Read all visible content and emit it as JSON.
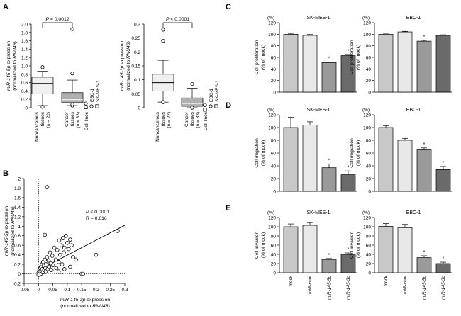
{
  "chart_data": [
    {
      "panel": "A",
      "type": "boxplot",
      "ylabel_lines": [
        [
          "miR-145-5p",
          " expression"
        ],
        [
          "(normalized to ",
          "RNU48",
          ")"
        ]
      ],
      "ylim": [
        0,
        2.0
      ],
      "yticks": [
        0,
        0.2,
        0.4,
        0.6,
        0.8,
        1.0,
        1.2,
        1.4,
        1.6,
        1.8,
        2.0
      ],
      "yticklabels": [
        "0",
        "0.2",
        "0.4",
        "0.6",
        "0.8",
        "1.0",
        "1.2",
        "1.4",
        "1.6",
        "1.8",
        "2.0"
      ],
      "pvalue": "P = 0.0012",
      "groups": [
        {
          "label_lines": [
            "Noncancerous",
            "tissues",
            "(n = 22)"
          ],
          "whisker_low": 0.05,
          "q1": 0.33,
          "median": 0.58,
          "q3": 0.73,
          "whisker_high": 0.87,
          "outliers": [
            0.97,
            0.02
          ]
        },
        {
          "label_lines": [
            "Cancer",
            "tissues",
            "(n = 33)"
          ],
          "whisker_low": 0.05,
          "q1": 0.12,
          "median": 0.19,
          "q3": 0.36,
          "whisker_high": 0.66,
          "outliers": [
            0.82,
            1.88,
            0.05,
            0.08
          ]
        },
        {
          "label_lines": [
            "Cell lines"
          ],
          "cell_lines": [
            {
              "name": "EBC-1",
              "value": 0.05,
              "marker": "circle"
            },
            {
              "name": "SK-MES-1",
              "value": 0.08,
              "marker": "square"
            }
          ]
        }
      ]
    },
    {
      "panel": "A2",
      "type": "boxplot",
      "ylabel_lines": [
        [
          "miR-145-3p",
          " expression"
        ],
        [
          "(normalized to ",
          "RNU48",
          ")"
        ]
      ],
      "ylim": [
        0,
        0.3
      ],
      "yticks": [
        0,
        0.05,
        0.1,
        0.15,
        0.2,
        0.25,
        0.3
      ],
      "yticklabels": [
        "0",
        "0.05",
        "0.1",
        "0.15",
        "0.2",
        "0.25",
        "0.3"
      ],
      "pvalue": "P < 0.0001",
      "groups": [
        {
          "label_lines": [
            "Noncancerous",
            "tissues",
            "(n = 22)"
          ],
          "whisker_low": 0.02,
          "q1": 0.06,
          "median": 0.09,
          "q3": 0.12,
          "whisker_high": 0.17,
          "outliers": [
            0.24,
            0.28,
            0.02
          ]
        },
        {
          "label_lines": [
            "Cancer",
            "tissues",
            "(n = 33)"
          ],
          "whisker_low": 0.0,
          "q1": 0.005,
          "median": 0.015,
          "q3": 0.035,
          "whisker_high": 0.07,
          "outliers": [
            0.085,
            0.0
          ]
        },
        {
          "label_lines": [
            "Cell lines"
          ],
          "cell_lines": [
            {
              "name": "EBC-1",
              "value": 0.002,
              "marker": "circle"
            },
            {
              "name": "SK-MES-1",
              "value": 0.003,
              "marker": "square"
            }
          ]
        }
      ]
    },
    {
      "panel": "B",
      "type": "scatter",
      "xlabel_lines": [
        [
          "miR-145-3p",
          " expression"
        ],
        [
          "(normalized to ",
          "RNU48",
          ")"
        ]
      ],
      "ylabel_lines": [
        [
          "miR-145-5p",
          " expression"
        ],
        [
          "(normalized to ",
          "RNU48",
          ")"
        ]
      ],
      "xlim": [
        -0.05,
        0.3
      ],
      "ylim": [
        -0.2,
        2.0
      ],
      "xticks": [
        -0.05,
        0,
        0.05,
        0.1,
        0.15,
        0.2,
        0.25,
        0.3
      ],
      "xticklabels": [
        "-0.05",
        "0",
        "0.05",
        "0.1",
        "0.15",
        "0.2",
        "0.25",
        "0.3"
      ],
      "yticks": [
        -0.2,
        0,
        0.2,
        0.4,
        0.6,
        0.8,
        1.0,
        1.2,
        1.4,
        1.6,
        1.8,
        2.0
      ],
      "yticklabels": [
        "-0.2",
        "0",
        "0.2",
        "0.4",
        "0.6",
        "0.8",
        "1",
        "1.2",
        "1.4",
        "1.6",
        "1.8",
        "2"
      ],
      "stats": [
        "P < 0.0001",
        "R = 0.616"
      ],
      "regression": {
        "x0": 0.0,
        "y0": 0.08,
        "x1": 0.3,
        "y1": 1.02
      },
      "points": [
        [
          0.0,
          0.02
        ],
        [
          0.003,
          0.08
        ],
        [
          0.005,
          0.05
        ],
        [
          0.006,
          0.12
        ],
        [
          0.008,
          0.0
        ],
        [
          0.009,
          0.15
        ],
        [
          0.01,
          0.06
        ],
        [
          0.012,
          0.2
        ],
        [
          0.013,
          0.1
        ],
        [
          0.015,
          0.03
        ],
        [
          0.016,
          0.25
        ],
        [
          0.018,
          0.17
        ],
        [
          0.02,
          0.08
        ],
        [
          0.022,
          0.3
        ],
        [
          0.024,
          0.12
        ],
        [
          0.025,
          0.05
        ],
        [
          0.027,
          0.2
        ],
        [
          0.03,
          0.35
        ],
        [
          0.032,
          0.1
        ],
        [
          0.035,
          0.28
        ],
        [
          0.037,
          0.15
        ],
        [
          0.04,
          0.45
        ],
        [
          0.042,
          0.22
        ],
        [
          0.045,
          0.08
        ],
        [
          0.048,
          0.38
        ],
        [
          0.05,
          0.18
        ],
        [
          0.055,
          0.55
        ],
        [
          0.06,
          0.3
        ],
        [
          0.062,
          0.12
        ],
        [
          0.065,
          0.5
        ],
        [
          0.07,
          0.25
        ],
        [
          0.072,
          0.7
        ],
        [
          0.075,
          0.4
        ],
        [
          0.08,
          0.6
        ],
        [
          0.082,
          0.2
        ],
        [
          0.085,
          0.75
        ],
        [
          0.088,
          0.45
        ],
        [
          0.09,
          0.55
        ],
        [
          0.095,
          0.8
        ],
        [
          0.1,
          0.65
        ],
        [
          0.105,
          0.52
        ],
        [
          0.11,
          0.72
        ],
        [
          0.115,
          0.6
        ],
        [
          0.12,
          0.35
        ],
        [
          0.13,
          0.3
        ],
        [
          0.15,
          0.0
        ],
        [
          0.155,
          0.0
        ],
        [
          0.2,
          0.4
        ],
        [
          0.275,
          0.9
        ],
        [
          0.022,
          0.82
        ],
        [
          0.03,
          1.82
        ],
        [
          0.0,
          -0.02
        ],
        [
          0.07,
          0.05
        ],
        [
          0.09,
          0.1
        ],
        [
          0.11,
          0.15
        ]
      ]
    },
    {
      "panel": "C",
      "type": "bar",
      "title": "SK-MES-1",
      "ylabel_lines": [
        "Cell proliferation",
        "(% of mock)"
      ],
      "ylim": [
        0,
        120
      ],
      "yticks": [
        0,
        20,
        40,
        60,
        80,
        100,
        120
      ],
      "yunit": "(%)",
      "values": [
        100,
        98,
        51,
        63
      ],
      "errors": [
        1.5,
        1.5,
        1.0,
        2.0
      ],
      "significant": [
        false,
        false,
        true,
        true
      ]
    },
    {
      "panel": "C2",
      "type": "bar",
      "title": "EBC-1",
      "ylabel_lines": [
        "Cell proliferation",
        "(% of mock)"
      ],
      "ylim": [
        0,
        120
      ],
      "yticks": [
        0,
        20,
        40,
        60,
        80,
        100,
        120
      ],
      "yunit": "(%)",
      "values": [
        100,
        104,
        88,
        98
      ],
      "errors": [
        0.5,
        1.0,
        1.5,
        1.0
      ],
      "significant": [
        false,
        false,
        true,
        false
      ]
    },
    {
      "panel": "D",
      "type": "bar",
      "title": "SK-MES-1",
      "ylabel_lines": [
        "Cell migration",
        "(% of mock)"
      ],
      "ylim": [
        0,
        120
      ],
      "yticks": [
        0,
        20,
        40,
        60,
        80,
        100,
        120
      ],
      "yunit": "(%)",
      "values": [
        100,
        104,
        37,
        26
      ],
      "errors": [
        16,
        5,
        6,
        6
      ],
      "significant": [
        false,
        false,
        true,
        true
      ]
    },
    {
      "panel": "D2",
      "type": "bar",
      "title": "EBC-1",
      "ylabel_lines": [
        "Cell migration",
        "(% of mock)"
      ],
      "ylim": [
        0,
        120
      ],
      "yticks": [
        0,
        20,
        40,
        60,
        80,
        100,
        120
      ],
      "yunit": "(%)",
      "values": [
        100,
        80,
        65,
        34
      ],
      "errors": [
        3,
        3,
        3,
        5
      ],
      "significant": [
        false,
        false,
        true,
        true
      ]
    },
    {
      "panel": "E",
      "type": "bar",
      "title": "SK-MES-1",
      "ylabel_lines": [
        "Cell invasion",
        "(% of mock)"
      ],
      "ylim": [
        0,
        120
      ],
      "yticks": [
        0,
        20,
        40,
        60,
        80,
        100,
        120
      ],
      "yunit": "(%)",
      "values": [
        100,
        103,
        29,
        40
      ],
      "errors": [
        6,
        6,
        2,
        3
      ],
      "significant": [
        false,
        false,
        true,
        true
      ],
      "categories": [
        "mock",
        "miR-cont",
        "miR-145-5p",
        "miR-145-3p"
      ],
      "category_italic": [
        false,
        true,
        true,
        true
      ]
    },
    {
      "panel": "E2",
      "type": "bar",
      "title": "EBC-1",
      "ylabel_lines": [
        "Cell invasion",
        "(% of mock)"
      ],
      "ylim": [
        0,
        120
      ],
      "yticks": [
        0,
        20,
        40,
        60,
        80,
        100,
        120
      ],
      "yunit": "(%)",
      "values": [
        101,
        98,
        33,
        20
      ],
      "errors": [
        6,
        7,
        4,
        3
      ],
      "significant": [
        false,
        false,
        true,
        true
      ],
      "categories": [
        "mock",
        "miR-cont",
        "miR-145-5p",
        "miR-145-3p"
      ],
      "category_italic": [
        false,
        true,
        true,
        true
      ]
    }
  ],
  "labels": {
    "A": "A",
    "B": "B",
    "C": "C",
    "D": "D",
    "E": "E"
  },
  "colors": {
    "bars": [
      "#c8c8c8",
      "#e8e8e8",
      "#9a9a9a",
      "#6a6a6a"
    ],
    "box_normal": "#f0f0f0",
    "box_cancer": "#b0b0b0"
  }
}
